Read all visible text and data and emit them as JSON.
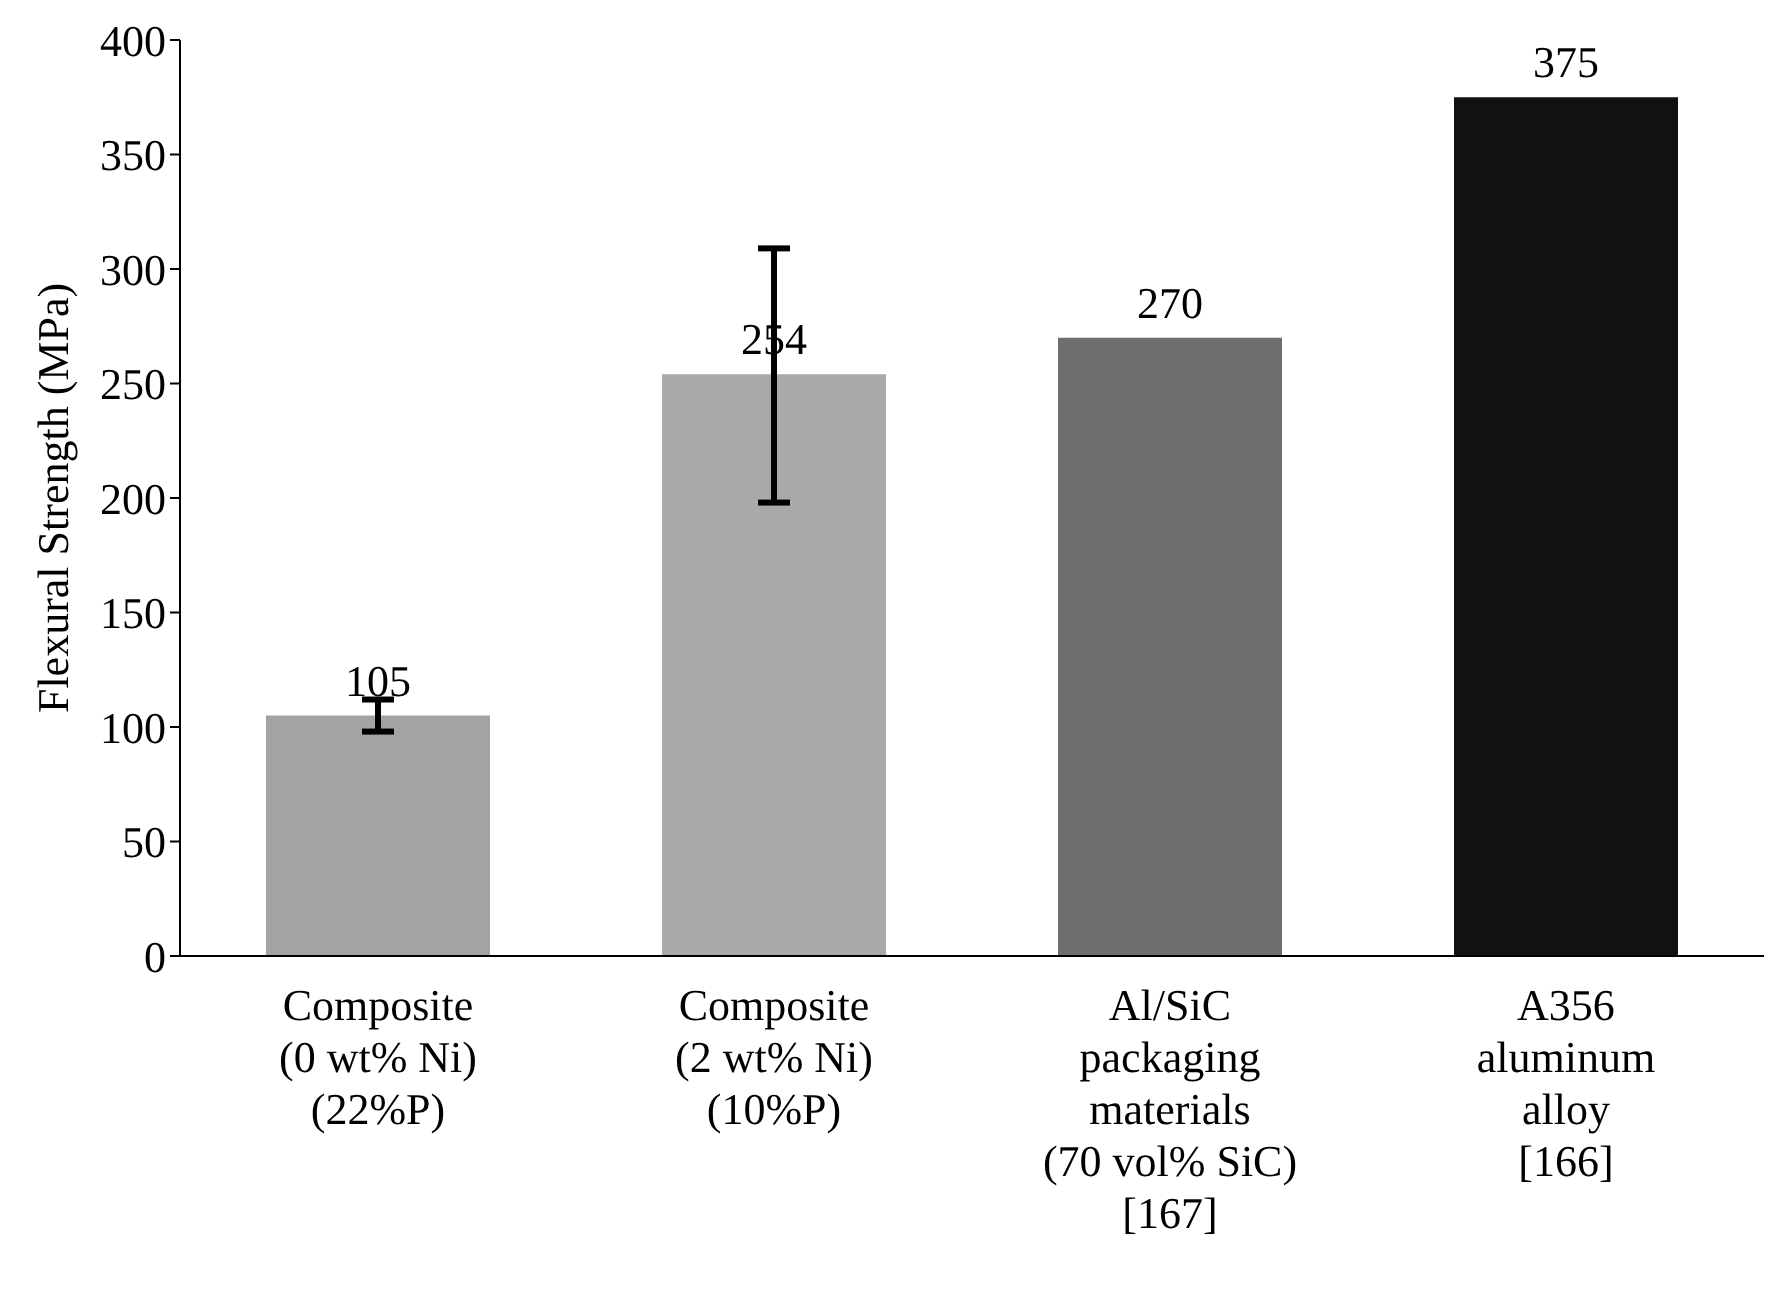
{
  "chart_data": {
    "type": "bar",
    "ylabel": "Flexural Strength (MPa)",
    "categories": [
      "Composite\n(0 wt% Ni)\n(22%P)",
      "Composite\n(2 wt% Ni)\n(10%P)",
      "Al/SiC\npackaging\nmaterials\n(70 vol% SiC)\n[167]",
      "A356\naluminum\nalloy\n[166]"
    ],
    "values": [
      105,
      254,
      270,
      375
    ],
    "colors": [
      "#a3a3a3",
      "#a9a9a9",
      "#6e6e6e",
      "#111111"
    ],
    "errors": [
      7,
      [
        198,
        309
      ],
      null,
      null
    ],
    "data_labels": true,
    "ylim": [
      0,
      400
    ],
    "yticks": [
      0,
      50,
      100,
      150,
      200,
      250,
      300,
      350,
      400
    ],
    "grid": false
  }
}
